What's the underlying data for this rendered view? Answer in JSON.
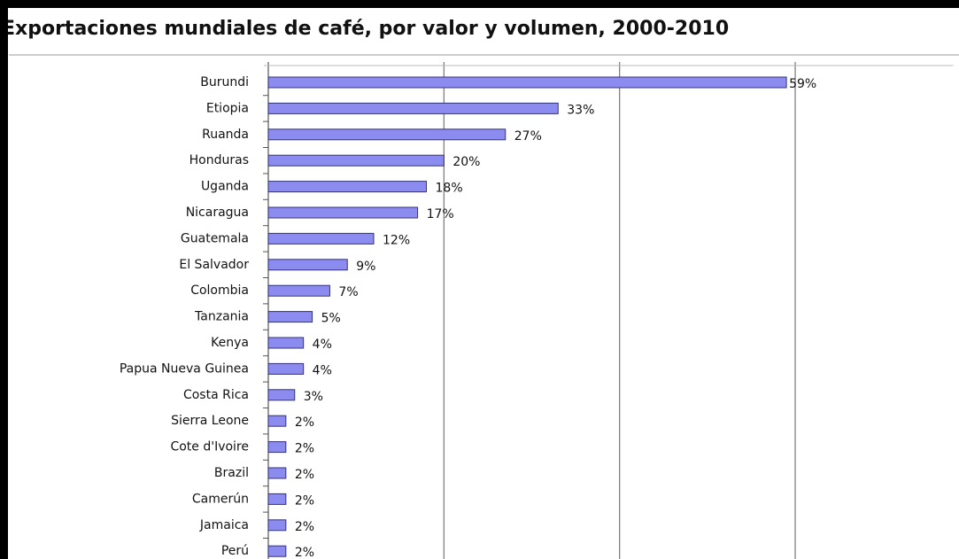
{
  "chart_data": {
    "type": "hbar",
    "title": "Exportaciones mundiales de café, por valor y volumen, 2000-2010",
    "categories": [
      "Burundi",
      "Etiopia",
      "Ruanda",
      "Honduras",
      "Uganda",
      "Nicaragua",
      "Guatemala",
      "El Salvador",
      "Colombia",
      "Tanzania",
      "Kenya",
      "Papua Nueva Guinea",
      "Costa Rica",
      "Sierra Leone",
      "Cote d'Ivoire",
      "Brazil",
      "Camerún",
      "Jamaica",
      "Perú"
    ],
    "values": [
      59,
      33,
      27,
      20,
      18,
      17,
      12,
      9,
      7,
      5,
      4,
      4,
      3,
      2,
      2,
      2,
      2,
      2,
      2
    ],
    "value_labels": [
      "59%",
      "33%",
      "27%",
      "20%",
      "18%",
      "17%",
      "12%",
      "9%",
      "7%",
      "5%",
      "4%",
      "4%",
      "3%",
      "2%",
      "2%",
      "2%",
      "2%",
      "2%",
      "2%"
    ],
    "color": "#8c8cf0",
    "xlim": [
      0,
      78
    ],
    "xticks": [
      0,
      20,
      40,
      60
    ],
    "grid": true
  }
}
